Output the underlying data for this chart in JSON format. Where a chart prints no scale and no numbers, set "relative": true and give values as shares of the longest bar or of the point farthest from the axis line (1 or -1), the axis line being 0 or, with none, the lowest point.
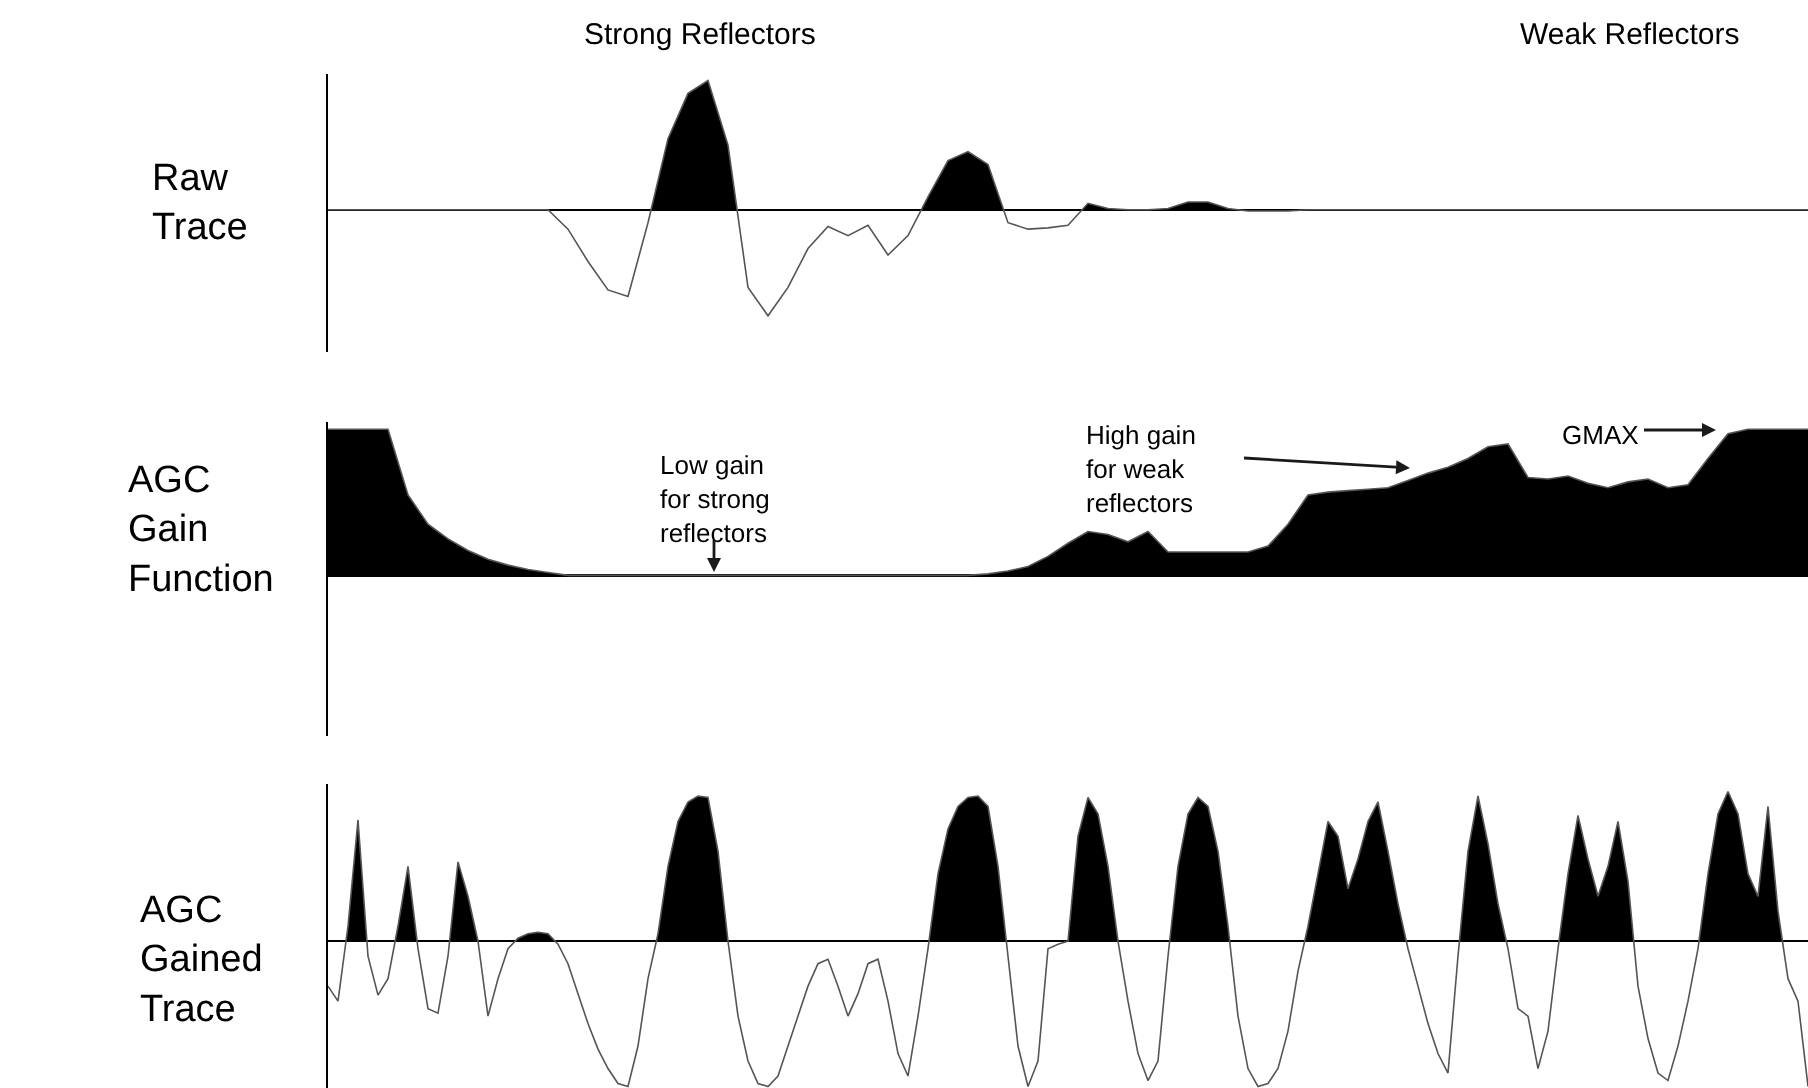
{
  "chart_data": [
    {
      "type": "area",
      "relative": true,
      "ylabel": "Raw\nTrace",
      "grid": false,
      "legend": false,
      "annotations": [
        "Strong Reflectors",
        "Weak Reflectors"
      ],
      "categories": [
        null,
        null,
        null,
        null,
        null,
        null,
        null,
        null,
        null,
        null,
        null,
        null,
        null,
        null,
        null,
        null,
        null,
        null,
        null,
        null,
        null,
        null,
        null,
        null,
        null,
        null,
        null,
        null,
        null,
        null,
        null,
        null,
        null,
        null,
        null,
        null,
        null,
        null,
        null,
        null,
        null,
        null,
        null,
        null,
        null,
        null,
        null,
        null,
        null,
        null,
        null,
        null,
        null,
        null,
        null,
        null,
        null,
        null,
        null,
        null,
        null,
        null,
        null,
        null,
        null,
        null,
        null,
        null,
        null,
        null,
        null,
        null,
        null,
        null,
        null
      ],
      "series": [
        {
          "color": "#000000",
          "values": [
            0,
            0,
            0,
            0,
            0,
            0,
            0,
            0,
            0,
            0,
            0,
            0,
            -0.15,
            -0.4,
            -0.62,
            -0.67,
            -0.1,
            0.55,
            0.9,
            1.0,
            0.5,
            -0.6,
            -0.82,
            -0.6,
            -0.3,
            -0.13,
            -0.2,
            -0.12,
            -0.35,
            -0.2,
            0.1,
            0.38,
            0.45,
            0.35,
            -0.1,
            -0.15,
            -0.14,
            -0.12,
            0.05,
            0.01,
            0,
            0,
            0.01,
            0.06,
            0.06,
            0.01,
            -0.01,
            -0.01,
            -0.01,
            0,
            0,
            0,
            0,
            0,
            0,
            0,
            0,
            0,
            0,
            0,
            0,
            0,
            0,
            0,
            0,
            0,
            0,
            0,
            0,
            0,
            0,
            0,
            0,
            0,
            0
          ]
        }
      ]
    },
    {
      "type": "area",
      "relative": true,
      "ylabel": "AGC\nGain\nFunction",
      "grid": false,
      "legend": false,
      "annotations": [
        "Low gain\nfor strong\nreflectors",
        "High gain\nfor weak\nreflectors",
        "GMAX"
      ],
      "categories": [
        null,
        null,
        null,
        null,
        null,
        null,
        null,
        null,
        null,
        null,
        null,
        null,
        null,
        null,
        null,
        null,
        null,
        null,
        null,
        null,
        null,
        null,
        null,
        null,
        null,
        null,
        null,
        null,
        null,
        null,
        null,
        null,
        null,
        null,
        null,
        null,
        null,
        null,
        null,
        null,
        null,
        null,
        null,
        null,
        null,
        null,
        null,
        null,
        null,
        null,
        null,
        null,
        null,
        null,
        null,
        null,
        null,
        null,
        null,
        null,
        null,
        null,
        null,
        null,
        null,
        null,
        null,
        null,
        null,
        null,
        null,
        null,
        null,
        null,
        null
      ],
      "series": [
        {
          "color": "#000000",
          "values": [
            1,
            1,
            1,
            1,
            0.55,
            0.35,
            0.25,
            0.17,
            0.11,
            0.07,
            0.04,
            0.02,
            0,
            0,
            0,
            0,
            0,
            0,
            0,
            0,
            0,
            0,
            0,
            0,
            0,
            0,
            0,
            0,
            0,
            0,
            0,
            0,
            0,
            0.01,
            0.03,
            0.06,
            0.13,
            0.22,
            0.3,
            0.28,
            0.23,
            0.3,
            0.16,
            0.16,
            0.16,
            0.16,
            0.16,
            0.2,
            0.35,
            0.55,
            0.57,
            0.58,
            0.59,
            0.6,
            0.65,
            0.7,
            0.74,
            0.8,
            0.88,
            0.9,
            0.67,
            0.66,
            0.68,
            0.63,
            0.6,
            0.64,
            0.66,
            0.6,
            0.62,
            0.8,
            0.97,
            1,
            1,
            1,
            1
          ]
        }
      ]
    },
    {
      "type": "area",
      "relative": true,
      "ylabel": "AGC\nGained\nTrace",
      "grid": false,
      "legend": false,
      "categories": [
        null,
        null,
        null,
        null,
        null,
        null,
        null,
        null,
        null,
        null,
        null,
        null,
        null,
        null,
        null,
        null,
        null,
        null,
        null,
        null,
        null,
        null,
        null,
        null,
        null,
        null,
        null,
        null,
        null,
        null,
        null,
        null,
        null,
        null,
        null,
        null,
        null,
        null,
        null,
        null,
        null,
        null,
        null,
        null,
        null,
        null,
        null,
        null,
        null,
        null,
        null,
        null,
        null,
        null,
        null,
        null,
        null,
        null,
        null,
        null,
        null,
        null,
        null,
        null,
        null,
        null,
        null,
        null,
        null,
        null,
        null,
        null,
        null,
        null,
        null,
        null,
        null,
        null,
        null,
        null,
        null,
        null,
        null,
        null,
        null,
        null,
        null,
        null,
        null,
        null,
        null,
        null,
        null,
        null,
        null,
        null,
        null,
        null,
        null,
        null,
        null,
        null,
        null,
        null,
        null,
        null,
        null,
        null,
        null,
        null,
        null,
        null,
        null,
        null,
        null,
        null,
        null,
        null,
        null,
        null,
        null,
        null,
        null,
        null,
        null,
        null,
        null,
        null,
        null,
        null,
        null,
        null,
        null,
        null,
        null,
        null,
        null,
        null,
        null,
        null,
        null,
        null,
        null,
        null,
        null,
        null,
        null,
        null,
        null
      ],
      "series": [
        {
          "color": "#000000",
          "values": [
            -0.3,
            -0.4,
            0.1,
            0.81,
            -0.1,
            -0.36,
            -0.25,
            0.1,
            0.5,
            -0.05,
            -0.45,
            -0.48,
            -0.1,
            0.53,
            0.3,
            0,
            -0.5,
            -0.25,
            -0.05,
            0.02,
            0.05,
            0.06,
            0.05,
            -0.02,
            -0.15,
            -0.35,
            -0.55,
            -0.72,
            -0.85,
            -0.95,
            -0.97,
            -0.7,
            -0.25,
            0.05,
            0.5,
            0.8,
            0.93,
            0.97,
            0.96,
            0.6,
            0,
            -0.5,
            -0.8,
            -0.95,
            -0.97,
            -0.9,
            -0.7,
            -0.5,
            -0.3,
            -0.15,
            -0.12,
            -0.3,
            -0.5,
            -0.35,
            -0.15,
            -0.12,
            -0.4,
            -0.75,
            -0.9,
            -0.5,
            -0.05,
            0.45,
            0.75,
            0.9,
            0.96,
            0.97,
            0.9,
            0.5,
            -0.1,
            -0.7,
            -0.97,
            -0.8,
            -0.05,
            -0.02,
            0,
            0.7,
            0.96,
            0.85,
            0.5,
            0,
            -0.4,
            -0.75,
            -0.93,
            -0.8,
            -0.1,
            0.5,
            0.85,
            0.96,
            0.9,
            0.6,
            0.1,
            -0.5,
            -0.85,
            -0.97,
            -0.95,
            -0.85,
            -0.6,
            -0.2,
            0.1,
            0.45,
            0.8,
            0.7,
            0.35,
            0.55,
            0.8,
            0.93,
            0.6,
            0.25,
            -0.05,
            -0.3,
            -0.55,
            -0.75,
            -0.88,
            -0.1,
            0.6,
            0.97,
            0.65,
            0.25,
            -0.05,
            -0.45,
            -0.5,
            -0.85,
            -0.6,
            -0.05,
            0.45,
            0.84,
            0.55,
            0.3,
            0.5,
            0.8,
            0.4,
            -0.3,
            -0.65,
            -0.88,
            -0.93,
            -0.7,
            -0.4,
            -0.05,
            0.45,
            0.85,
            1.0,
            0.85,
            0.45,
            0.3,
            0.9,
            0.2,
            -0.25,
            -0.4,
            -0.97
          ]
        }
      ]
    }
  ]
}
